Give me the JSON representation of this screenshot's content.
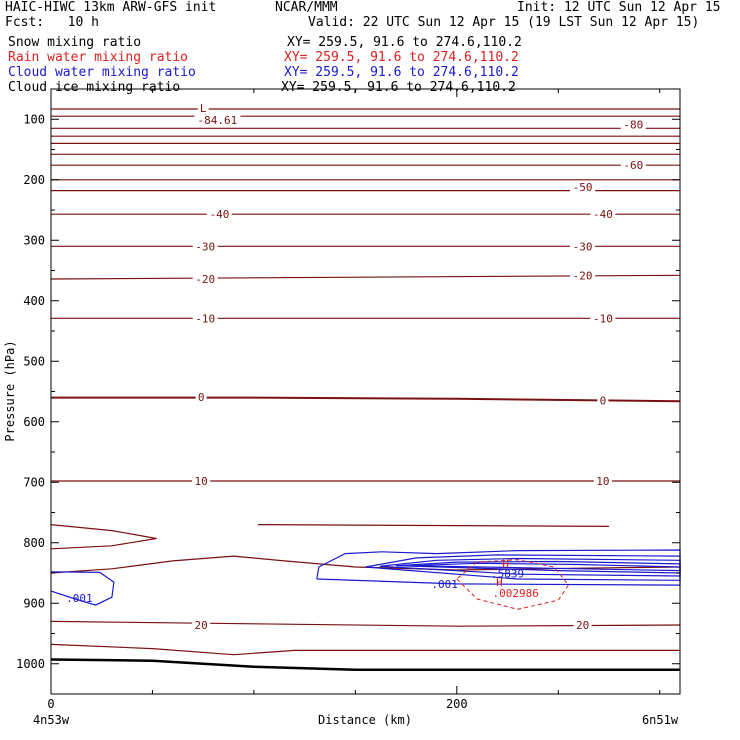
{
  "header": {
    "title": "HAIC-HIWC 13km ARW-GFS init",
    "org": "NCAR/MMM",
    "init": "Init: 12 UTC Sun 12 Apr 15",
    "fcst": "Fcst:   10 h",
    "valid": "Valid: 22 UTC Sun 12 Apr 15 (19 LST Sun 12 Apr 15)"
  },
  "legend": [
    {
      "name": "Snow mixing ratio",
      "xy": "XY= 259.5, 91.6 to 274.6,110.2",
      "color": "#000000"
    },
    {
      "name": "Rain water mixing ratio",
      "xy": "XY= 259.5, 91.6 to 274.6,110.2",
      "color": "#e02020"
    },
    {
      "name": "Cloud water mixing ratio",
      "xy": "XY= 259.5, 91.6 to 274.6,110.2",
      "color": "#1a1ad0"
    },
    {
      "name": "Cloud ice mixing ratio",
      "xy": "XY= 259.5, 91.6 to 274.6,110.2",
      "color": "#000000"
    }
  ],
  "chart_data": {
    "type": "contour",
    "xlabel": "Distance (km)",
    "ylabel": "Pressure (hPa)",
    "xlim": [
      0,
      310
    ],
    "ylim": [
      50,
      1050
    ],
    "x_ticks": [
      "0",
      "200"
    ],
    "x_tick_values": [
      0,
      200
    ],
    "y_ticks": [
      "100",
      "200",
      "300",
      "400",
      "500",
      "600",
      "700",
      "800",
      "900",
      "1000"
    ],
    "y_tick_values": [
      100,
      200,
      300,
      400,
      500,
      600,
      700,
      800,
      900,
      1000
    ],
    "endpoint_labels": {
      "left": "4n53w",
      "right": "6n51w"
    },
    "temperature_color": "#7a1010",
    "contour_labels": [
      {
        "text": "L",
        "x": 75,
        "p": 81
      },
      {
        "text": "-84.61",
        "x": 82,
        "p": 101
      },
      {
        "text": "-80",
        "x": 287,
        "p": 109
      },
      {
        "text": "-60",
        "x": 287,
        "p": 176
      },
      {
        "text": "-50",
        "x": 262,
        "p": 212
      },
      {
        "text": "-40",
        "x": 83,
        "p": 257
      },
      {
        "text": "-40",
        "x": 272,
        "p": 257
      },
      {
        "text": "-30",
        "x": 76,
        "p": 310
      },
      {
        "text": "-30",
        "x": 262,
        "p": 310
      },
      {
        "text": "-20",
        "x": 76,
        "p": 364
      },
      {
        "text": "-20",
        "x": 262,
        "p": 358
      },
      {
        "text": "-10",
        "x": 76,
        "p": 429
      },
      {
        "text": "-10",
        "x": 272,
        "p": 429
      },
      {
        "text": "0",
        "x": 74,
        "p": 559
      },
      {
        "text": "0",
        "x": 272,
        "p": 565
      },
      {
        "text": "10",
        "x": 74,
        "p": 698
      },
      {
        "text": "10",
        "x": 272,
        "p": 698
      },
      {
        "text": "20",
        "x": 74,
        "p": 936
      },
      {
        "text": "20",
        "x": 262,
        "p": 936
      }
    ],
    "extrema_labels": [
      {
        "text": "H",
        "x": 224,
        "p": 834,
        "color": "#e02020"
      },
      {
        "text": ".5839",
        "x": 225,
        "p": 851,
        "color": "#1a1ad0"
      },
      {
        "text": "H",
        "x": 221,
        "p": 865,
        "color": "#e02020"
      },
      {
        "text": ".002986",
        "x": 229,
        "p": 883,
        "color": "#e02020"
      },
      {
        "text": ".001",
        "x": 194,
        "p": 868,
        "color": "#1a1ad0"
      },
      {
        "text": ".001",
        "x": 14,
        "p": 891,
        "color": "#1a1ad0"
      }
    ],
    "isotherms": [
      [
        [
          0,
          83
        ],
        [
          310,
          83
        ]
      ],
      [
        [
          0,
          95
        ],
        [
          310,
          95
        ]
      ],
      [
        [
          0,
          115
        ],
        [
          310,
          115
        ]
      ],
      [
        [
          0,
          128
        ],
        [
          310,
          128
        ]
      ],
      [
        [
          0,
          140
        ],
        [
          310,
          140
        ]
      ],
      [
        [
          0,
          158
        ],
        [
          310,
          158
        ]
      ],
      [
        [
          0,
          176
        ],
        [
          310,
          176
        ]
      ],
      [
        [
          0,
          200
        ],
        [
          310,
          200
        ]
      ],
      [
        [
          0,
          218
        ],
        [
          310,
          218
        ]
      ],
      [
        [
          0,
          257
        ],
        [
          310,
          257
        ]
      ],
      [
        [
          0,
          310
        ],
        [
          310,
          310
        ]
      ],
      [
        [
          0,
          364
        ],
        [
          310,
          358
        ]
      ],
      [
        [
          0,
          429
        ],
        [
          310,
          429
        ]
      ],
      [
        [
          0,
          560
        ],
        [
          100,
          560
        ],
        [
          200,
          562
        ],
        [
          310,
          566
        ]
      ],
      [
        [
          0,
          698
        ],
        [
          310,
          698
        ]
      ],
      [
        [
          0,
          770
        ],
        [
          30,
          780
        ],
        [
          52,
          793
        ],
        [
          30,
          805
        ],
        [
          0,
          810
        ]
      ],
      [
        [
          102,
          770
        ],
        [
          275,
          773
        ]
      ],
      [
        [
          0,
          850
        ],
        [
          30,
          843
        ],
        [
          60,
          830
        ],
        [
          90,
          822
        ],
        [
          115,
          830
        ],
        [
          150,
          840
        ],
        [
          200,
          845
        ],
        [
          260,
          842
        ],
        [
          310,
          840
        ]
      ],
      [
        [
          0,
          930
        ],
        [
          100,
          934
        ],
        [
          200,
          938
        ],
        [
          310,
          936
        ]
      ],
      [
        [
          0,
          968
        ],
        [
          50,
          975
        ],
        [
          90,
          985
        ],
        [
          120,
          978
        ],
        [
          200,
          978
        ],
        [
          310,
          978
        ]
      ]
    ],
    "surface": [
      [
        0,
        993
      ],
      [
        50,
        995
      ],
      [
        100,
        1005
      ],
      [
        150,
        1010
      ],
      [
        200,
        1010
      ],
      [
        310,
        1010
      ]
    ],
    "cloud_water": [
      [
        [
          131,
          860
        ],
        [
          132,
          840
        ],
        [
          145,
          818
        ],
        [
          163,
          815
        ],
        [
          190,
          818
        ],
        [
          230,
          813
        ],
        [
          310,
          812
        ],
        [
          310,
          870
        ],
        [
          200,
          868
        ],
        [
          131,
          860
        ]
      ],
      [
        [
          155,
          840
        ],
        [
          180,
          825
        ],
        [
          220,
          820
        ],
        [
          310,
          822
        ],
        [
          310,
          862
        ],
        [
          230,
          860
        ],
        [
          155,
          840
        ]
      ],
      [
        [
          162,
          839
        ],
        [
          190,
          829
        ],
        [
          230,
          826
        ],
        [
          310,
          829
        ],
        [
          310,
          855
        ],
        [
          230,
          852
        ],
        [
          162,
          839
        ]
      ],
      [
        [
          170,
          838
        ],
        [
          200,
          832
        ],
        [
          250,
          831
        ],
        [
          310,
          835
        ],
        [
          310,
          850
        ],
        [
          250,
          846
        ],
        [
          170,
          838
        ]
      ],
      [
        [
          177,
          838
        ],
        [
          210,
          834
        ],
        [
          260,
          836
        ],
        [
          310,
          840
        ],
        [
          310,
          846
        ],
        [
          260,
          843
        ],
        [
          177,
          838
        ]
      ],
      [
        [
          0,
          848
        ],
        [
          24,
          849
        ],
        [
          31,
          865
        ],
        [
          30,
          890
        ],
        [
          22,
          903
        ],
        [
          12,
          893
        ],
        [
          0,
          880
        ]
      ]
    ],
    "rain": [
      [
        [
          200,
          860
        ],
        [
          210,
          893
        ],
        [
          230,
          910
        ],
        [
          250,
          895
        ],
        [
          255,
          870
        ],
        [
          248,
          840
        ],
        [
          230,
          828
        ],
        [
          210,
          832
        ],
        [
          200,
          860
        ]
      ]
    ]
  }
}
